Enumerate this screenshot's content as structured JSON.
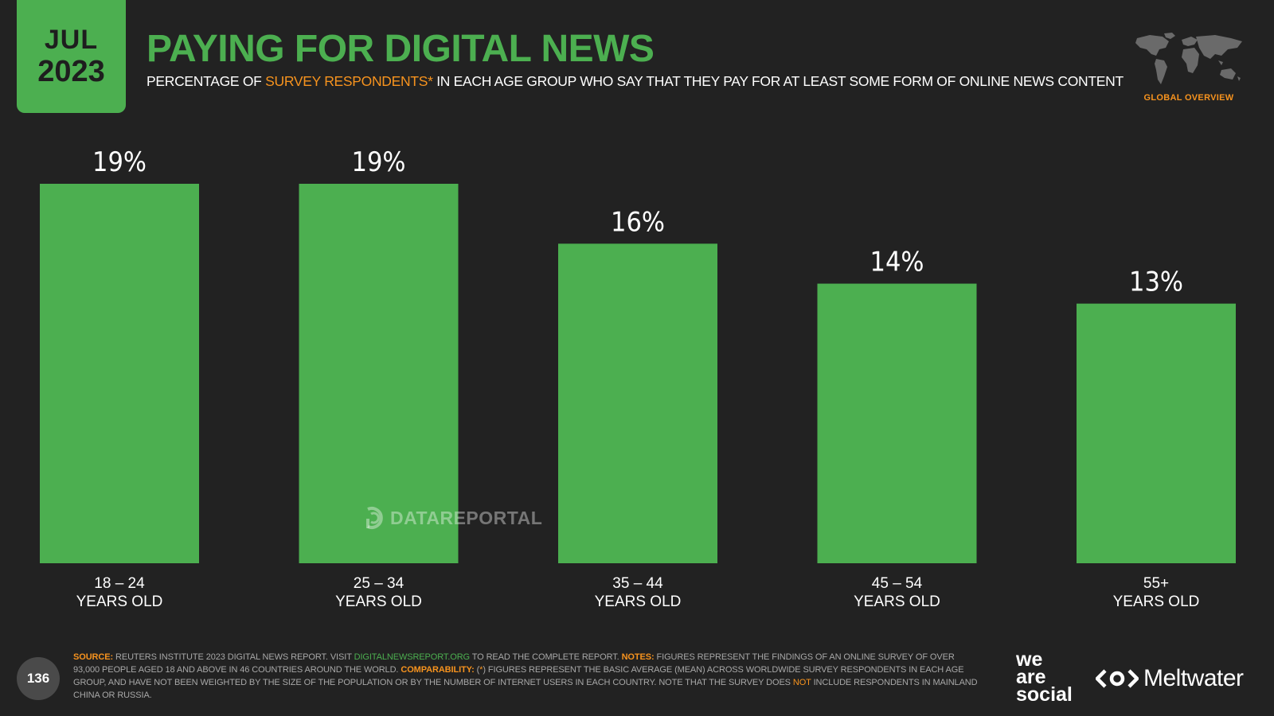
{
  "header": {
    "month": "JUL",
    "year": "2023",
    "title": "PAYING FOR DIGITAL NEWS",
    "subtitle_pre": "PERCENTAGE OF ",
    "subtitle_highlight": "SURVEY RESPONDENTS*",
    "subtitle_post": " IN EACH AGE GROUP WHO SAY THAT THEY PAY FOR AT LEAST SOME FORM OF ONLINE NEWS CONTENT",
    "region_label": "GLOBAL OVERVIEW",
    "map_icon": "world-map-icon"
  },
  "chart_data": {
    "type": "bar",
    "categories": [
      "18 – 24",
      "25 – 34",
      "35 – 44",
      "45 – 54",
      "55+"
    ],
    "category_sublabel": "YEARS OLD",
    "values": [
      19,
      19,
      16,
      14,
      13
    ],
    "value_labels": [
      "19%",
      "19%",
      "16%",
      "14%",
      "13%"
    ],
    "unit": "%",
    "ylim": [
      0,
      19
    ],
    "bar_color": "#4caf50",
    "title": "",
    "xlabel": "",
    "ylabel": "",
    "grid": false,
    "legend": false
  },
  "watermark": "DATAREPORTAL",
  "footer": {
    "page_number": "136",
    "source_label": "SOURCE:",
    "source_text_1": " REUTERS INSTITUTE 2023 DIGITAL NEWS REPORT. VISIT ",
    "source_link": "DIGITALNEWSREPORT.ORG",
    "source_text_2": " TO READ THE COMPLETE REPORT. ",
    "notes_label": "NOTES:",
    "notes_text": " FIGURES REPRESENT THE FINDINGS OF AN ONLINE SURVEY OF OVER 93,000 PEOPLE AGED 18 AND ABOVE IN 46 COUNTRIES AROUND THE WORLD. ",
    "comparability_label": "COMPARABILITY:",
    "comparability_text_1": " (",
    "comparability_star": "*",
    "comparability_text_2": ") FIGURES REPRESENT THE BASIC AVERAGE (MEAN) ACROSS WORLDWIDE SURVEY RESPONDENTS IN EACH AGE GROUP, AND HAVE NOT BEEN WEIGHTED BY THE SIZE OF THE POPULATION OR BY THE NUMBER OF INTERNET USERS IN EACH COUNTRY. NOTE THAT THE SURVEY DOES ",
    "not_word": "NOT",
    "comparability_text_3": " INCLUDE RESPONDENTS IN MAINLAND CHINA OR RUSSIA.",
    "brand_1_line1": "we",
    "brand_1_line2": "are",
    "brand_1_line3": "social",
    "brand_2": "Meltwater"
  },
  "colors": {
    "background": "#222222",
    "accent_green": "#4caf50",
    "accent_orange": "#f7931e"
  }
}
